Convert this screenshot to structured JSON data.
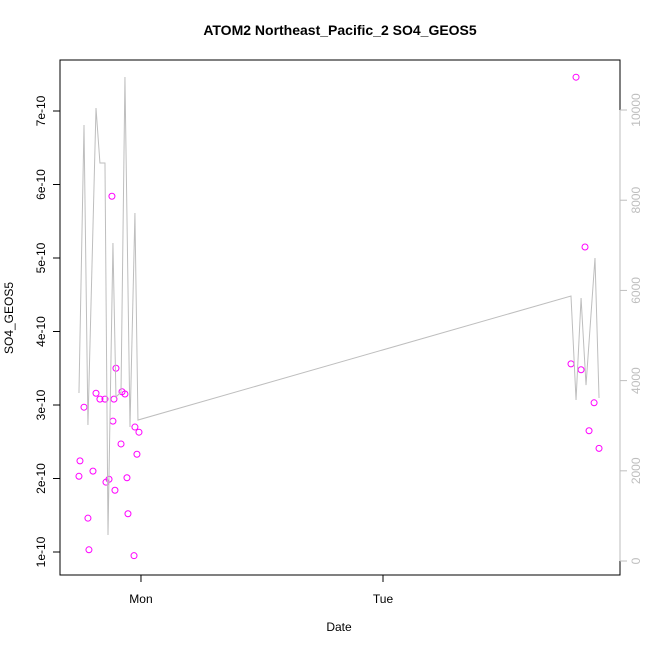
{
  "chart_data": {
    "type": "scatter",
    "title": "ATOM2 Northeast_Pacific_2 SO4_GEOS5",
    "xlabel": "Date",
    "ylabel": "SO4_GEOS5",
    "xlim": [
      -8.03,
      47.5
    ],
    "xticks": [
      {
        "value": 0,
        "label": "Mon"
      },
      {
        "value": 24,
        "label": "Tue"
      }
    ],
    "ylim": [
      6.87e-11,
      7.694e-10
    ],
    "yticks": [
      {
        "value": 1e-10,
        "label": "1e-10"
      },
      {
        "value": 2e-10,
        "label": "2e-10"
      },
      {
        "value": 3e-10,
        "label": "3e-10"
      },
      {
        "value": 4e-10,
        "label": "4e-10"
      },
      {
        "value": 5e-10,
        "label": "5e-10"
      },
      {
        "value": 6e-10,
        "label": "6e-10"
      },
      {
        "value": 7e-10,
        "label": "7e-10"
      }
    ],
    "y2lim": [
      -310,
      11109
    ],
    "y2ticks": [
      0,
      2000,
      4000,
      6000,
      8000,
      10000
    ],
    "series": [
      {
        "type": "scatter",
        "color": "#ff00ff",
        "x": [
          -6.15,
          -6.05,
          -5.65,
          -5.26,
          -5.16,
          -4.76,
          -4.46,
          -4.07,
          -3.57,
          -3.47,
          -3.17,
          -2.88,
          -2.78,
          -2.68,
          -2.58,
          -2.48,
          -1.98,
          -1.88,
          -1.59,
          -1.39,
          -1.29,
          -0.69,
          -0.6,
          -0.4,
          -0.2,
          42.64,
          43.14,
          43.64,
          44.03,
          44.43,
          44.93,
          45.42
        ],
        "values": [
          2.03e-10,
          2.24e-10,
          2.97e-10,
          1.46e-10,
          1.03e-10,
          2.1e-10,
          3.16e-10,
          3.08e-10,
          3.08e-10,
          1.95e-10,
          1.99e-10,
          5.84e-10,
          2.78e-10,
          3.08e-10,
          1.84e-10,
          3.5e-10,
          2.47e-10,
          3.18e-10,
          3.15e-10,
          2.01e-10,
          1.52e-10,
          9.5e-11,
          2.7e-10,
          2.33e-10,
          2.63e-10,
          3.56e-10,
          7.46e-10,
          3.48e-10,
          5.15e-10,
          2.65e-10,
          3.03e-10,
          2.41e-10
        ]
      },
      {
        "type": "line",
        "axis": "y2",
        "color": "#bebebe",
        "x": [
          -6.15,
          -5.65,
          -5.26,
          -4.46,
          -4.07,
          -3.57,
          -3.27,
          -2.78,
          -2.48,
          -1.98,
          -1.59,
          -1.09,
          -0.6,
          -0.3,
          42.64,
          43.14,
          43.64,
          44.13,
          45.02,
          45.42
        ],
        "values": [
          3725,
          9667,
          3015,
          10044,
          8825,
          8825,
          576,
          7051,
          3636,
          3747,
          10732,
          2971,
          7716,
          3126,
          5876,
          3570,
          5831,
          3902,
          6718,
          3614
        ]
      }
    ]
  }
}
